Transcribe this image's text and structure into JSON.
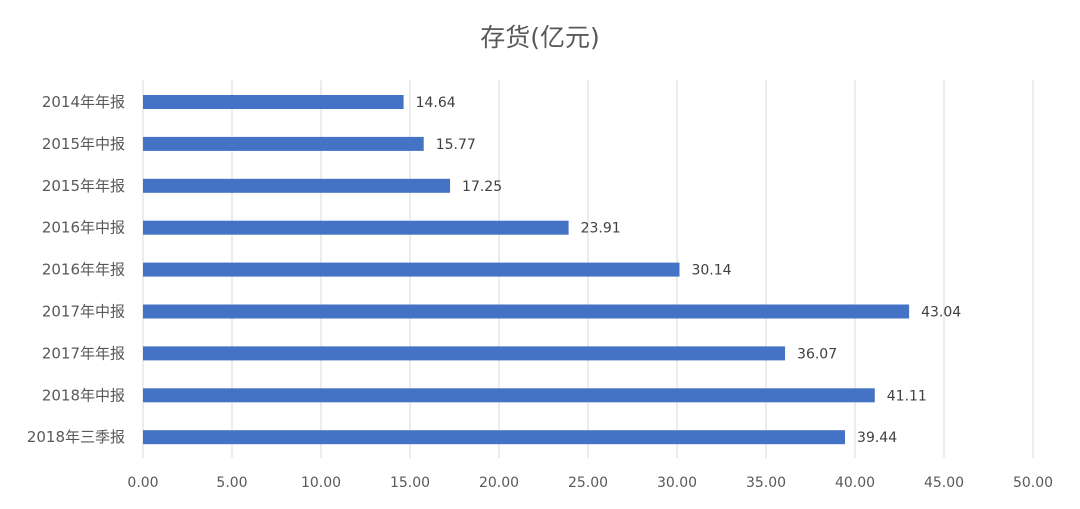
{
  "chart_data": {
    "type": "bar",
    "orientation": "horizontal",
    "title": "存货(亿元)",
    "xlabel": "",
    "ylabel": "",
    "categories": [
      "2014年年报",
      "2015年中报",
      "2015年年报",
      "2016年中报",
      "2016年年报",
      "2017年中报",
      "2017年年报",
      "2018年中报",
      "2018年三季报"
    ],
    "values": [
      14.64,
      15.77,
      17.25,
      23.91,
      30.14,
      43.04,
      36.07,
      41.11,
      39.44
    ],
    "value_labels": [
      "14.64",
      "15.77",
      "17.25",
      "23.91",
      "30.14",
      "43.04",
      "36.07",
      "41.11",
      "39.44"
    ],
    "xlim": [
      0,
      50
    ],
    "x_ticks": [
      "0.00",
      "5.00",
      "10.00",
      "15.00",
      "20.00",
      "25.00",
      "30.00",
      "35.00",
      "40.00",
      "45.00",
      "50.00"
    ],
    "grid": true,
    "legend": "none",
    "bar_color": "#4472C4"
  }
}
